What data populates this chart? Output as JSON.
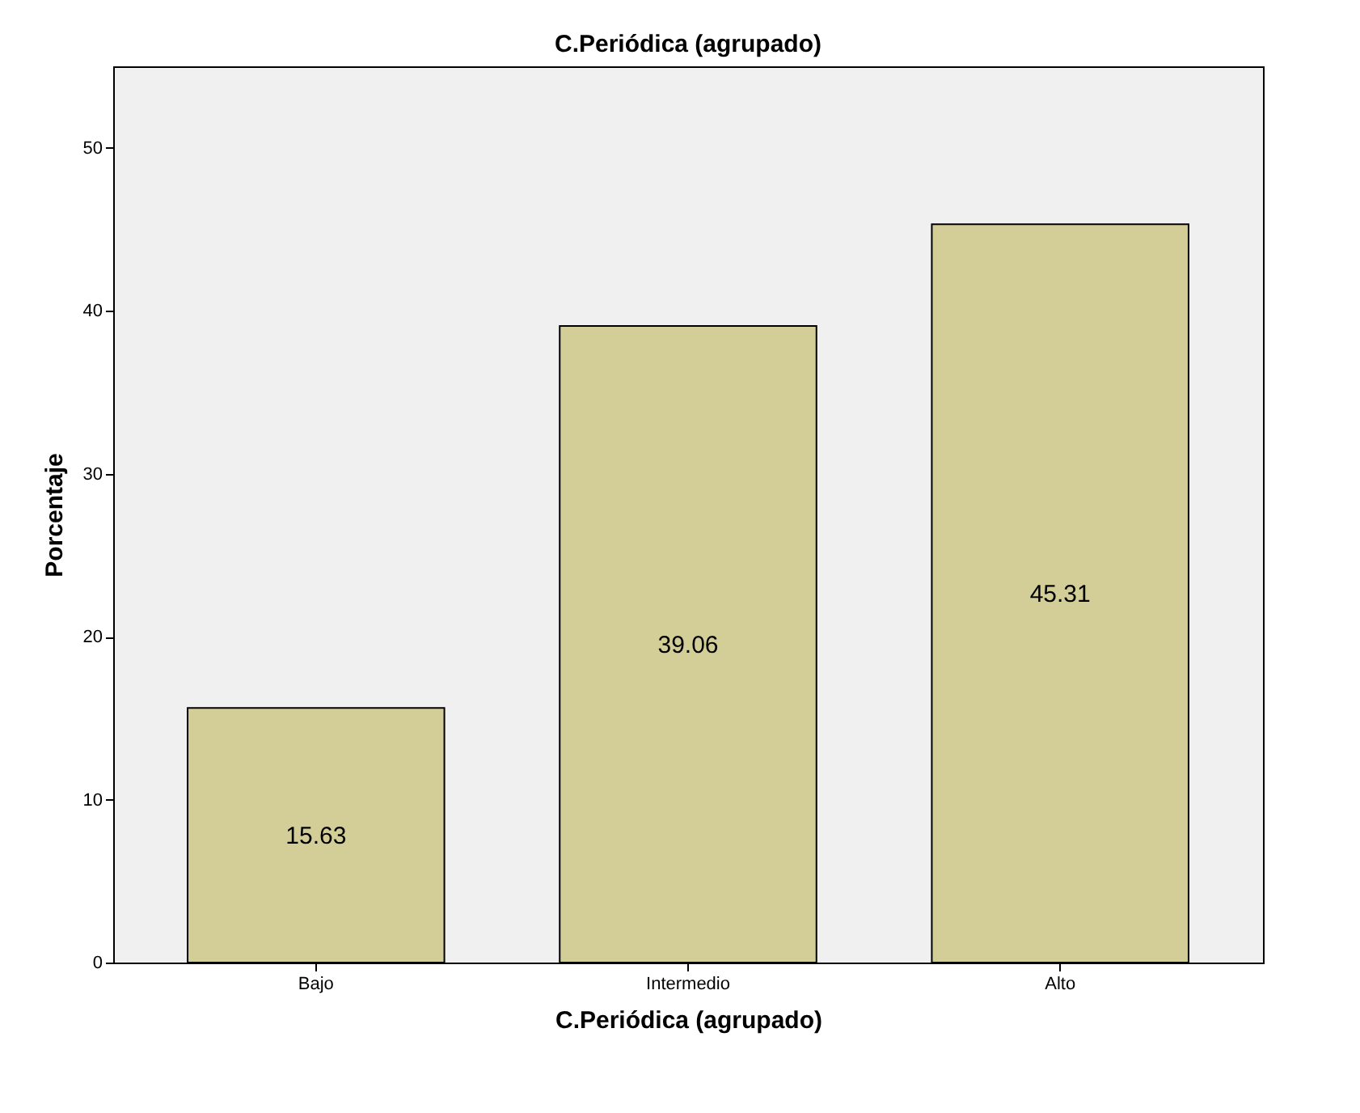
{
  "chart_data": {
    "type": "bar",
    "title": "C.Periódica (agrupado)",
    "xlabel": "C.Periódica (agrupado)",
    "ylabel": "Porcentaje",
    "categories": [
      "Bajo",
      "Intermedio",
      "Alto"
    ],
    "values": [
      15.63,
      39.06,
      45.31
    ],
    "color": "#d3ce98",
    "ylim": [
      0,
      55
    ],
    "yticks": [
      0,
      10,
      20,
      30,
      40,
      50
    ],
    "grid": false,
    "data_labels": true
  }
}
